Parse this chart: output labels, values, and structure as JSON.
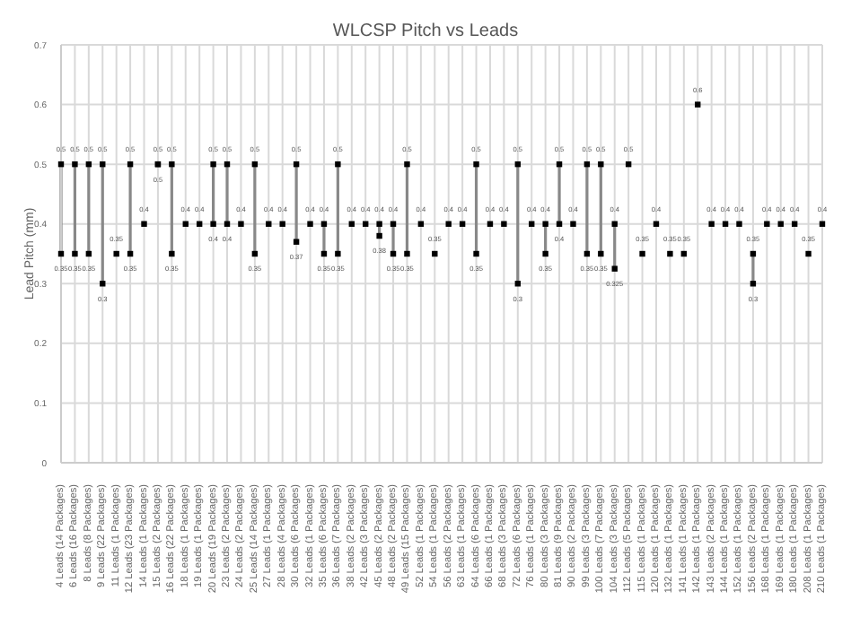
{
  "chart_data": {
    "type": "scatter",
    "title": "WLCSP Pitch vs Leads",
    "ylabel": "Lead Pitch (mm)",
    "categories": [
      "4 Leads (14 Packages)",
      "6 Leads (16 Packages)",
      "8 Leads (8 Packages)",
      "9 Leads (22 Packages)",
      "11 Leads (1 Packages)",
      "12 Leads (23 Packages)",
      "14 Leads (1 Packages)",
      "15 Leads (2 Packages)",
      "16 Leads (22 Packages)",
      "18 Leads (1 Packages)",
      "19 Leads (1 Packages)",
      "20 Leads (19 Packages)",
      "23 Leads (2 Packages)",
      "24 Leads (2 Packages)",
      "25 Leads (14 Packages)",
      "27 Leads (1 Packages)",
      "28 Leads (4 Packages)",
      "30 Leads (6 Packages)",
      "32 Leads (1 Packages)",
      "35 Leads (6 Packages)",
      "36 Leads (7 Packages)",
      "38 Leads (2 Packages)",
      "42 Leads (3 Packages)",
      "45 Leads (2 Packages)",
      "48 Leads (2 Packages)",
      "49 Leads (15 Packages)",
      "52 Leads (1 Packages)",
      "54 Leads (1 Packages)",
      "56 Leads (2 Packages)",
      "63 Leads (1 Packages)",
      "64 Leads (6 Packages)",
      "66 Leads (1 Packages)",
      "68 Leads (3 Packages)",
      "72 Leads (6 Packages)",
      "76 Leads (1 Packages)",
      "80 Leads (3 Packages)",
      "81 Leads (9 Packages)",
      "90 Leads (2 Packages)",
      "99 Leads (3 Packages)",
      "100 Leads (7 Packages)",
      "104 Leads (3 Packages)",
      "112 Leads (5 Packages)",
      "115 Leads (1 Packages)",
      "120 Leads (1 Packages)",
      "132 Leads (1 Packages)",
      "141 Leads (1 Packages)",
      "142 Leads (1 Packages)",
      "143 Leads (2 Packages)",
      "144 Leads (1 Packages)",
      "152 Leads (1 Packages)",
      "156 Leads (2 Packages)",
      "168 Leads (1 Packages)",
      "169 Leads (1 Packages)",
      "180 Leads (1 Packages)",
      "208 Leads (1 Packages)",
      "210 Leads (1 Packages)"
    ],
    "series": [
      {
        "color": "#000000",
        "values": [
          0.5,
          0.5,
          0.5,
          0.5,
          0.35,
          0.5,
          0.4,
          0.5,
          0.5,
          0.4,
          0.4,
          0.5,
          0.5,
          0.4,
          0.5,
          0.4,
          0.4,
          0.5,
          0.4,
          0.4,
          0.5,
          0.4,
          0.4,
          0.4,
          0.4,
          0.5,
          0.4,
          0.35,
          0.4,
          0.4,
          0.5,
          0.4,
          0.4,
          0.5,
          0.4,
          0.4,
          0.5,
          0.4,
          0.5,
          0.5,
          0.4,
          0.5,
          0.35,
          0.4,
          0.35,
          0.35,
          0.6,
          0.4,
          0.4,
          0.4,
          0.35,
          0.4,
          0.4,
          0.4,
          0.35,
          0.4
        ]
      },
      {
        "color": "#000000",
        "values": [
          0.35,
          0.35,
          0.35,
          0.3,
          null,
          0.35,
          null,
          0.5,
          0.35,
          null,
          null,
          0.4,
          0.4,
          null,
          0.35,
          null,
          null,
          0.37,
          null,
          0.35,
          0.35,
          null,
          null,
          0.38,
          0.35,
          0.35,
          null,
          null,
          null,
          null,
          0.35,
          null,
          null,
          0.3,
          null,
          0.35,
          0.4,
          null,
          0.35,
          0.35,
          0.325,
          null,
          null,
          null,
          null,
          null,
          null,
          null,
          null,
          null,
          0.3,
          null,
          null,
          null,
          null,
          null
        ]
      }
    ],
    "ylim": [
      0,
      0.7
    ],
    "yticks": [
      0,
      0.1,
      0.2,
      0.3,
      0.4,
      0.5,
      0.6,
      0.7
    ],
    "grid": true,
    "marker": "square",
    "data_labels": true
  }
}
